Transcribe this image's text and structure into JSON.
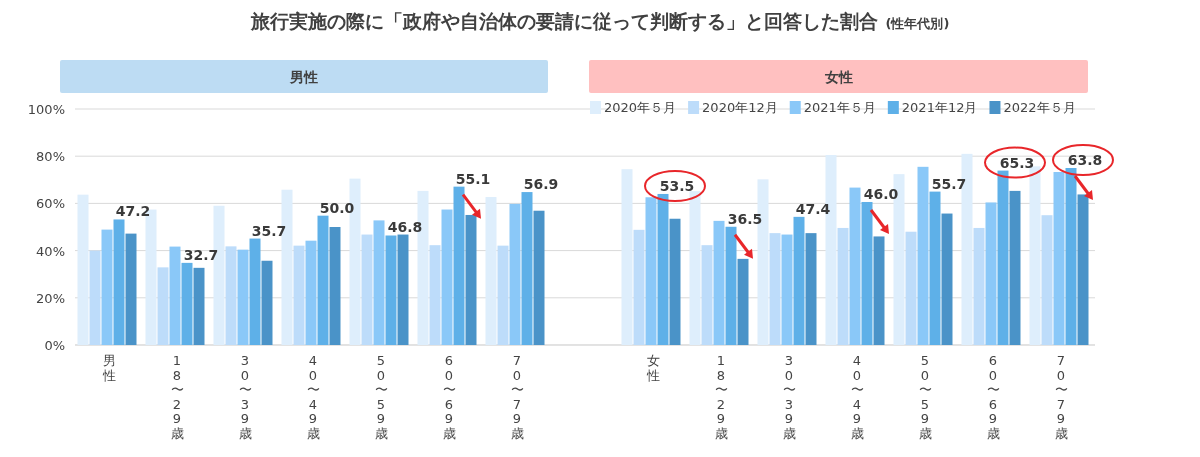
{
  "chart_data": {
    "type": "bar",
    "title": "旅行実施の際に「政府や自治体の要請に従って判断する」と回答した割合",
    "subtitle": "(性年代別)",
    "annotations": [
      "男性",
      "女性"
    ],
    "categories": [
      "男性",
      "18〜29歳",
      "30〜39歳",
      "40〜49歳",
      "50〜59歳",
      "60〜69歳",
      "70〜79歳",
      null,
      "女性",
      "18〜29歳",
      "30〜39歳",
      "40〜49歳",
      "50〜59歳",
      "60〜69歳",
      "70〜79歳"
    ],
    "series": [
      {
        "name": "2020年５月",
        "color": "#deeefc",
        "values": [
          63.7,
          57.4,
          59.0,
          65.8,
          70.5,
          65.3,
          62.7,
          null,
          74.5,
          65.2,
          70.2,
          80.5,
          72.4,
          81.0,
          75.7
        ]
      },
      {
        "name": "2020年12月",
        "color": "#bddcfa",
        "values": [
          40.0,
          32.9,
          41.8,
          42.1,
          46.8,
          42.3,
          42.1,
          null,
          48.8,
          42.3,
          47.4,
          49.6,
          48.0,
          49.6,
          55.0
        ]
      },
      {
        "name": "2021年５月",
        "color": "#8ac8f8",
        "values": [
          48.9,
          41.7,
          40.4,
          44.2,
          52.8,
          57.4,
          59.8,
          null,
          62.6,
          52.6,
          46.8,
          66.7,
          75.5,
          60.4,
          73.3
        ]
      },
      {
        "name": "2021年12月",
        "color": "#5eb0e8",
        "values": [
          53.2,
          34.8,
          45.1,
          54.8,
          46.4,
          67.1,
          64.8,
          null,
          64.0,
          50.1,
          54.3,
          60.6,
          65.0,
          73.9,
          75.0
        ]
      },
      {
        "name": "2022年５月",
        "color": "#4a93c8",
        "values": [
          47.2,
          32.7,
          35.7,
          50.0,
          46.8,
          55.1,
          56.9,
          null,
          53.5,
          36.5,
          47.4,
          46.0,
          55.7,
          65.3,
          63.8
        ],
        "value_labels": [
          "47.2",
          "32.7",
          "35.7",
          "50.0",
          "46.8",
          "55.1",
          "56.9",
          null,
          "53.5",
          "36.5",
          "47.4",
          "46.0",
          "55.7",
          "65.3",
          "63.8"
        ]
      }
    ],
    "ylim": [
      0,
      100
    ],
    "yticks": [
      {
        "value": 0,
        "label": "0%"
      },
      {
        "value": 20,
        "label": "20%"
      },
      {
        "value": 40,
        "label": "40%"
      },
      {
        "value": 60,
        "label": "60%"
      },
      {
        "value": 80,
        "label": "80%"
      },
      {
        "value": 100,
        "label": "100%"
      }
    ],
    "grid": "y",
    "legend": "top right"
  }
}
